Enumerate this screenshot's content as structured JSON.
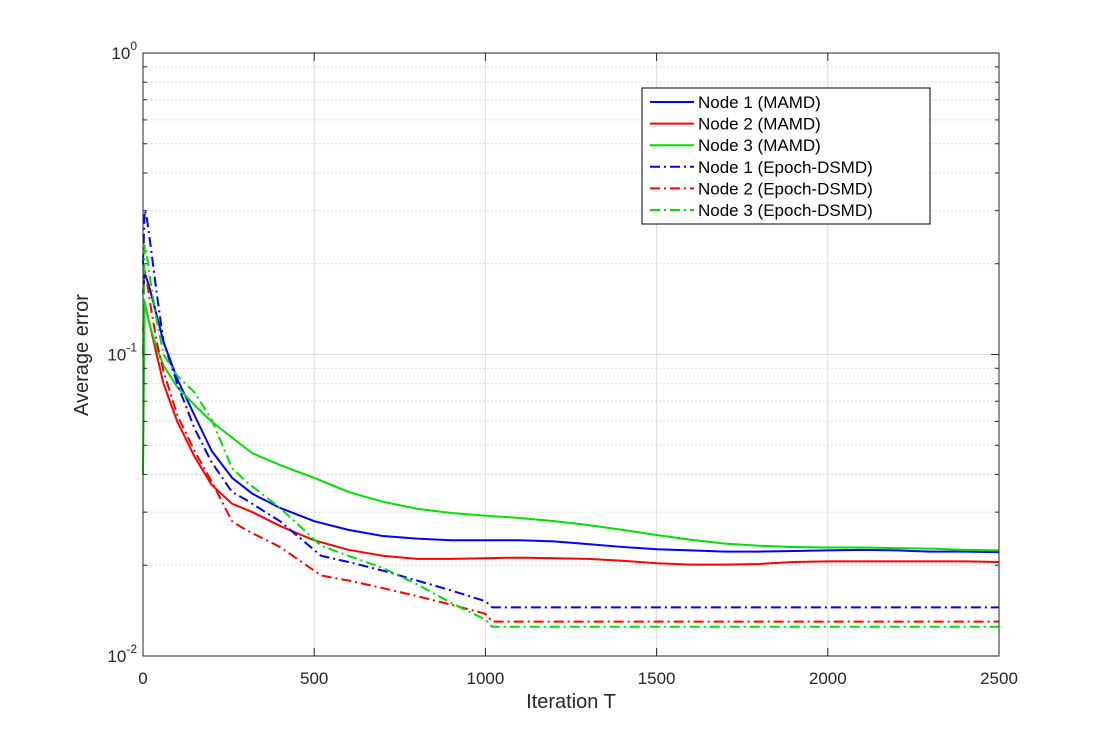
{
  "chart_data": {
    "type": "line",
    "title": "",
    "xlabel": "Iteration T",
    "ylabel": "Average error",
    "xlim": [
      0,
      2500
    ],
    "ylim": [
      0.01,
      1
    ],
    "yscale": "log",
    "grid": true,
    "legend_position": "top-right",
    "x_ticks": [
      {
        "value": 0,
        "label": "0"
      },
      {
        "value": 500,
        "label": "500"
      },
      {
        "value": 1000,
        "label": "1000"
      },
      {
        "value": 1500,
        "label": "1500"
      },
      {
        "value": 2000,
        "label": "2000"
      },
      {
        "value": 2500,
        "label": "2500"
      }
    ],
    "y_ticks": [
      {
        "value": 0.01,
        "base": "10",
        "exp": "-2"
      },
      {
        "value": 0.1,
        "base": "10",
        "exp": "-1"
      },
      {
        "value": 1,
        "base": "10",
        "exp": "0"
      }
    ],
    "series": [
      {
        "name": "Node 1 (MAMD)",
        "color": "#0000ff",
        "style": "solid",
        "x": [
          0,
          5,
          10,
          20,
          40,
          60,
          100,
          150,
          200,
          260,
          320,
          400,
          500,
          600,
          700,
          800,
          900,
          1000,
          1100,
          1200,
          1300,
          1400,
          1500,
          1600,
          1700,
          1800,
          1900,
          2000,
          2100,
          2200,
          2300,
          2400,
          2500
        ],
        "y": [
          0.16,
          0.185,
          0.18,
          0.165,
          0.135,
          0.11,
          0.083,
          0.063,
          0.048,
          0.039,
          0.0345,
          0.031,
          0.028,
          0.0262,
          0.025,
          0.0245,
          0.0242,
          0.0242,
          0.0242,
          0.024,
          0.0235,
          0.023,
          0.0226,
          0.0224,
          0.0222,
          0.0222,
          0.0223,
          0.0224,
          0.0225,
          0.0224,
          0.0222,
          0.0222,
          0.0221
        ]
      },
      {
        "name": "Node 2 (MAMD)",
        "color": "#ff0000",
        "style": "solid",
        "x": [
          0,
          5,
          10,
          20,
          40,
          60,
          100,
          150,
          200,
          260,
          320,
          400,
          500,
          600,
          700,
          800,
          900,
          1000,
          1100,
          1200,
          1300,
          1400,
          1500,
          1600,
          1700,
          1800,
          1900,
          2000,
          2100,
          2200,
          2300,
          2400,
          2500
        ],
        "y": [
          0.12,
          0.145,
          0.14,
          0.125,
          0.1,
          0.08,
          0.06,
          0.046,
          0.037,
          0.032,
          0.03,
          0.027,
          0.0242,
          0.0225,
          0.0215,
          0.021,
          0.021,
          0.0211,
          0.0212,
          0.0211,
          0.021,
          0.0207,
          0.0203,
          0.0201,
          0.0201,
          0.0202,
          0.0205,
          0.0206,
          0.0206,
          0.0206,
          0.0206,
          0.0206,
          0.0205
        ]
      },
      {
        "name": "Node 3 (MAMD)",
        "color": "#00e000",
        "style": "solid",
        "x": [
          0,
          5,
          10,
          20,
          40,
          60,
          100,
          150,
          200,
          260,
          320,
          400,
          500,
          600,
          700,
          800,
          900,
          1000,
          1100,
          1200,
          1300,
          1400,
          1500,
          1600,
          1700,
          1800,
          1900,
          2000,
          2100,
          2200,
          2300,
          2400,
          2500
        ],
        "y": [
          0.04,
          0.15,
          0.14,
          0.125,
          0.105,
          0.092,
          0.078,
          0.068,
          0.06,
          0.053,
          0.047,
          0.043,
          0.039,
          0.035,
          0.0325,
          0.0308,
          0.0298,
          0.0292,
          0.0287,
          0.028,
          0.0272,
          0.0262,
          0.0252,
          0.0243,
          0.0236,
          0.0232,
          0.023,
          0.0229,
          0.0229,
          0.0228,
          0.0227,
          0.0225,
          0.0224
        ]
      },
      {
        "name": "Node 1 (Epoch-DSMD)",
        "color": "#0000ff",
        "style": "dashdot",
        "x": [
          0,
          5,
          10,
          20,
          40,
          60,
          100,
          150,
          200,
          260,
          300,
          400,
          520,
          600,
          700,
          800,
          900,
          1000,
          1020,
          1500,
          2000,
          2500
        ],
        "y": [
          0.2,
          0.3,
          0.29,
          0.24,
          0.16,
          0.11,
          0.08,
          0.057,
          0.044,
          0.035,
          0.033,
          0.028,
          0.0215,
          0.0205,
          0.0192,
          0.0178,
          0.0165,
          0.0152,
          0.0145,
          0.0145,
          0.0145,
          0.0145
        ]
      },
      {
        "name": "Node 2 (Epoch-DSMD)",
        "color": "#ff0000",
        "style": "dashdot",
        "x": [
          0,
          5,
          10,
          20,
          40,
          60,
          100,
          150,
          200,
          260,
          300,
          400,
          520,
          600,
          700,
          800,
          900,
          1000,
          1020,
          1500,
          2000,
          2500
        ],
        "y": [
          0.2,
          0.19,
          0.18,
          0.15,
          0.11,
          0.088,
          0.063,
          0.048,
          0.038,
          0.028,
          0.0262,
          0.023,
          0.0185,
          0.0178,
          0.0168,
          0.0158,
          0.0148,
          0.0138,
          0.013,
          0.013,
          0.013,
          0.013
        ]
      },
      {
        "name": "Node 3 (Epoch-DSMD)",
        "color": "#00e000",
        "style": "dashdot",
        "x": [
          0,
          5,
          10,
          20,
          40,
          60,
          100,
          150,
          200,
          260,
          300,
          400,
          520,
          600,
          700,
          800,
          900,
          1000,
          1020,
          1500,
          2000,
          2500
        ],
        "y": [
          0.1,
          0.23,
          0.22,
          0.18,
          0.13,
          0.1,
          0.085,
          0.075,
          0.061,
          0.042,
          0.038,
          0.031,
          0.0232,
          0.0215,
          0.0196,
          0.0173,
          0.015,
          0.0132,
          0.0125,
          0.0125,
          0.0125,
          0.0125
        ]
      }
    ]
  }
}
